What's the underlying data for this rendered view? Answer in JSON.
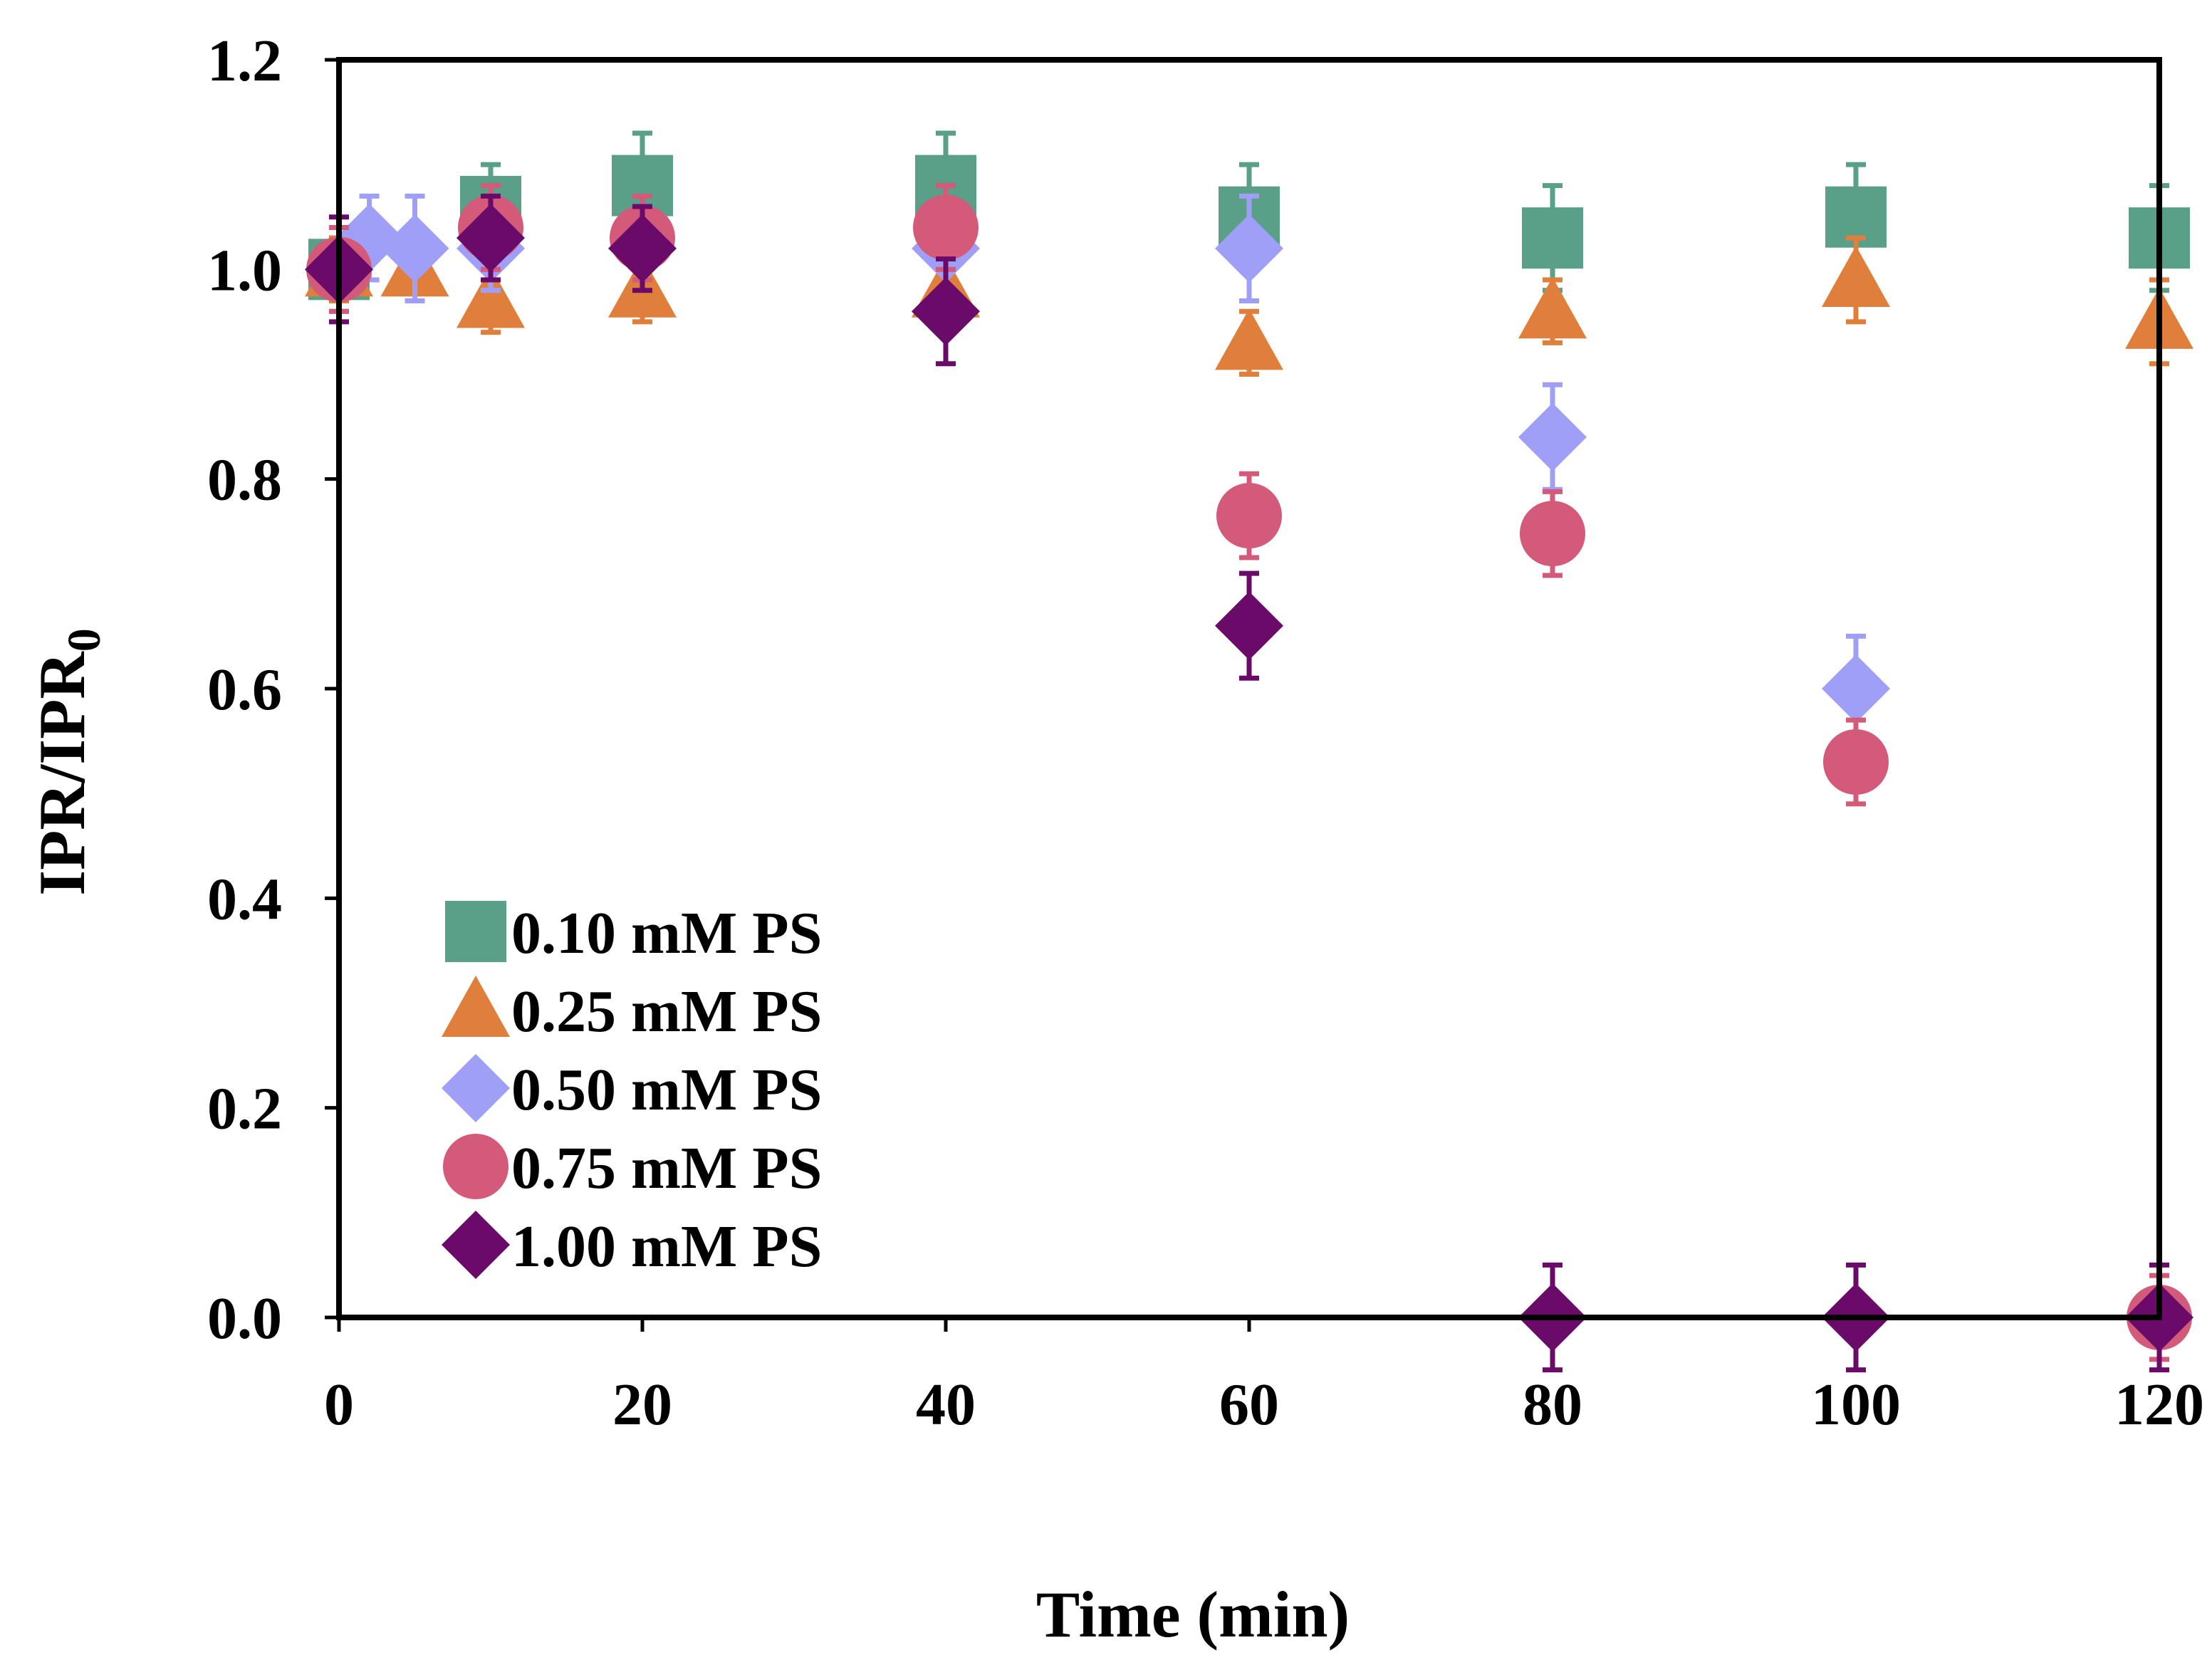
{
  "chart_data": {
    "type": "scatter",
    "title": "",
    "xlabel": "Time (min)",
    "ylabel": {
      "main": "IPR/IPR",
      "subscript": "0"
    },
    "xlim": [
      0,
      120
    ],
    "ylim": [
      0.0,
      1.2
    ],
    "xticks": [
      0,
      20,
      40,
      60,
      80,
      100,
      120
    ],
    "yticks": [
      0.0,
      0.2,
      0.4,
      0.6,
      0.8,
      1.0,
      1.2
    ],
    "xtick_labels": [
      "0",
      "20",
      "40",
      "60",
      "80",
      "100",
      "120"
    ],
    "ytick_labels": [
      "0.0",
      "0.2",
      "0.4",
      "0.6",
      "0.8",
      "1.0",
      "1.2"
    ],
    "grid": false,
    "legend_position": "bottom-left",
    "series": [
      {
        "name": "0.10 mM PS",
        "marker": "square",
        "color": "#5a9f88",
        "x": [
          0,
          10,
          20,
          40,
          60,
          80,
          100,
          120
        ],
        "y": [
          1.0,
          1.06,
          1.08,
          1.08,
          1.05,
          1.03,
          1.05,
          1.03
        ],
        "err": [
          0.03,
          0.04,
          0.05,
          0.05,
          0.05,
          0.05,
          0.05,
          0.05
        ]
      },
      {
        "name": "0.25 mM PS",
        "marker": "triangle",
        "color": "#e07f3c",
        "x": [
          0,
          5,
          10,
          20,
          40,
          60,
          80,
          100,
          120
        ],
        "y": [
          1.0,
          1.0,
          0.97,
          0.98,
          0.98,
          0.93,
          0.96,
          0.99,
          0.95
        ],
        "err": [
          0.03,
          0.03,
          0.03,
          0.03,
          0.03,
          0.03,
          0.03,
          0.04,
          0.04
        ]
      },
      {
        "name": "0.50 mM PS",
        "marker": "diamond",
        "color": "#9f9ff7",
        "x": [
          0,
          2,
          5,
          10,
          40,
          60,
          80,
          100
        ],
        "y": [
          1.0,
          1.03,
          1.02,
          1.02,
          1.02,
          1.02,
          0.84,
          0.6
        ],
        "err": [
          0.04,
          0.04,
          0.05,
          0.04,
          0.04,
          0.05,
          0.05,
          0.05
        ]
      },
      {
        "name": "0.75 mM PS",
        "marker": "circle",
        "color": "#d45a7a",
        "x": [
          0,
          10,
          20,
          40,
          60,
          80,
          100,
          120
        ],
        "y": [
          1.0,
          1.04,
          1.03,
          1.04,
          0.765,
          0.748,
          0.53,
          0.0
        ],
        "err": [
          0.04,
          0.04,
          0.04,
          0.04,
          0.04,
          0.04,
          0.04,
          0.04
        ]
      },
      {
        "name": "1.00 mM PS",
        "marker": "diamond",
        "color": "#6a0b6a",
        "x": [
          0,
          10,
          20,
          40,
          60,
          80,
          100,
          120
        ],
        "y": [
          1.0,
          1.03,
          1.02,
          0.96,
          0.66,
          0.0,
          0.0,
          0.0
        ],
        "err": [
          0.05,
          0.04,
          0.04,
          0.05,
          0.05,
          0.05,
          0.05,
          0.05
        ]
      }
    ]
  }
}
